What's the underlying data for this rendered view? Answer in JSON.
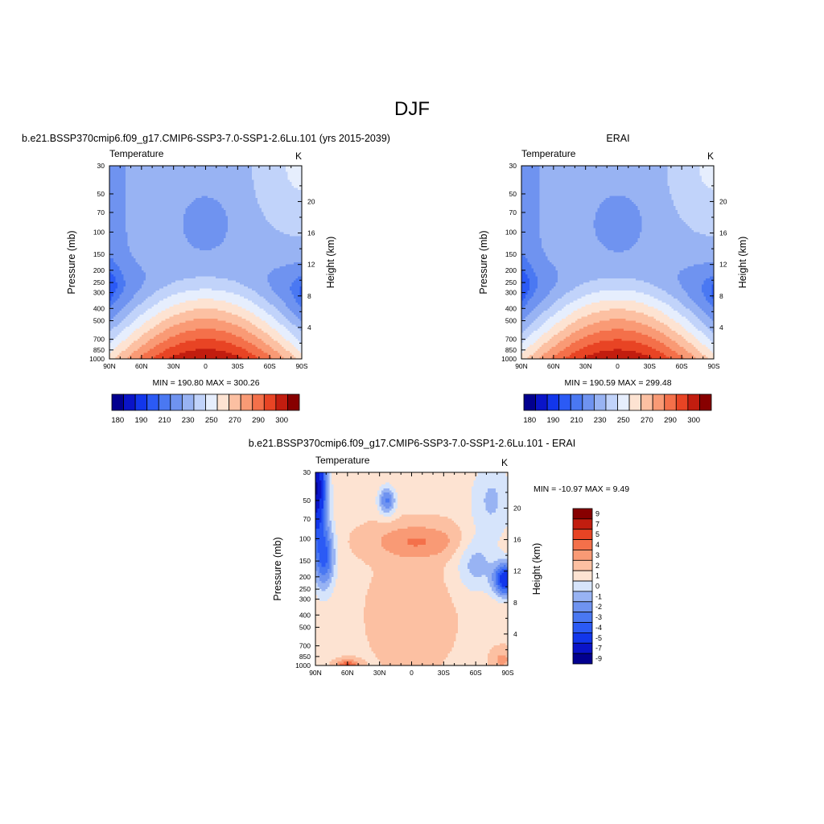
{
  "page": {
    "title": "DJF"
  },
  "chart_data": [
    {
      "type": "heatmap",
      "id": "model",
      "title": "b.e21.BSSP370cmip6.f09_g17.CMIP6-SSP3-7.0-SSP1-2.6Lu.101 (yrs 2015-2039)",
      "left_string": "Temperature",
      "right_string": "K",
      "ylabel": "Pressure (mb)",
      "ylabel_right": "Height (km)",
      "x_ticks": [
        "90N",
        "60N",
        "30N",
        "0",
        "30S",
        "60S",
        "90S"
      ],
      "y_ticks": [
        "30",
        "50",
        "70",
        "100",
        "150",
        "200",
        "250",
        "300",
        "400",
        "500",
        "700",
        "850",
        "1000"
      ],
      "height_ticks": [
        "4",
        "8",
        "12",
        "16",
        "20"
      ],
      "stats": "MIN = 190.80  MAX = 300.26",
      "min": 190.8,
      "max": 300.26,
      "colorbar": {
        "orientation": "horizontal",
        "levels": [
          180,
          185,
          190,
          195,
          200,
          210,
          220,
          230,
          240,
          250,
          260,
          270,
          280,
          290,
          300
        ],
        "labels": [
          "180",
          "190",
          "210",
          "230",
          "250",
          "270",
          "290",
          "300"
        ],
        "colors": [
          "#02008f",
          "#0a14c8",
          "#1236eb",
          "#2b5af5",
          "#4a78f2",
          "#6f93f0",
          "#98b3f3",
          "#c1d3fa",
          "#e6eefd",
          "#fde3d2",
          "#fcc0a2",
          "#f99a75",
          "#f4704a",
          "#e84424",
          "#c21d0f",
          "#870000"
        ]
      }
    },
    {
      "type": "heatmap",
      "id": "obs",
      "title": "ERAI",
      "left_string": "Temperature",
      "right_string": "K",
      "ylabel": "Pressure (mb)",
      "ylabel_right": "Height (km)",
      "x_ticks": [
        "90N",
        "60N",
        "30N",
        "0",
        "30S",
        "60S",
        "90S"
      ],
      "y_ticks": [
        "30",
        "50",
        "70",
        "100",
        "150",
        "200",
        "250",
        "300",
        "400",
        "500",
        "700",
        "850",
        "1000"
      ],
      "height_ticks": [
        "4",
        "8",
        "12",
        "16",
        "20"
      ],
      "stats": "MIN = 190.59  MAX = 299.48",
      "min": 190.59,
      "max": 299.48,
      "colorbar": {
        "orientation": "horizontal",
        "levels": [
          180,
          185,
          190,
          195,
          200,
          210,
          220,
          230,
          240,
          250,
          260,
          270,
          280,
          290,
          300
        ],
        "labels": [
          "180",
          "190",
          "210",
          "230",
          "250",
          "270",
          "290",
          "300"
        ],
        "colors": [
          "#02008f",
          "#0a14c8",
          "#1236eb",
          "#2b5af5",
          "#4a78f2",
          "#6f93f0",
          "#98b3f3",
          "#c1d3fa",
          "#e6eefd",
          "#fde3d2",
          "#fcc0a2",
          "#f99a75",
          "#f4704a",
          "#e84424",
          "#c21d0f",
          "#870000"
        ]
      }
    },
    {
      "type": "heatmap",
      "id": "diff",
      "title": "b.e21.BSSP370cmip6.f09_g17.CMIP6-SSP3-7.0-SSP1-2.6Lu.101 - ERAI",
      "left_string": "Temperature",
      "right_string": "K",
      "ylabel": "Pressure (mb)",
      "ylabel_right": "Height (km)",
      "x_ticks": [
        "90N",
        "60N",
        "30N",
        "0",
        "30S",
        "60S",
        "90S"
      ],
      "y_ticks": [
        "30",
        "50",
        "70",
        "100",
        "150",
        "200",
        "250",
        "300",
        "400",
        "500",
        "700",
        "850",
        "1000"
      ],
      "height_ticks": [
        "4",
        "8",
        "12",
        "16",
        "20"
      ],
      "stats": "MIN = -10.97  MAX =   9.49",
      "min": -10.97,
      "max": 9.49,
      "colorbar": {
        "orientation": "vertical",
        "levels": [
          -9,
          -7,
          -5,
          -4,
          -3,
          -2,
          -1,
          0,
          1,
          2,
          3,
          4,
          5,
          7,
          9
        ],
        "labels": [
          "9",
          "7",
          "5",
          "4",
          "3",
          "2",
          "1",
          "0",
          "-1",
          "-2",
          "-3",
          "-4",
          "-5",
          "-7",
          "-9"
        ],
        "colors": [
          "#02008f",
          "#0a14c8",
          "#1236eb",
          "#2b5af5",
          "#4a78f2",
          "#6f93f0",
          "#98b3f3",
          "#d6e4fb",
          "#fde3d2",
          "#fcc0a2",
          "#f99a75",
          "#f4704a",
          "#e84424",
          "#c21d0f",
          "#870000"
        ]
      }
    }
  ]
}
